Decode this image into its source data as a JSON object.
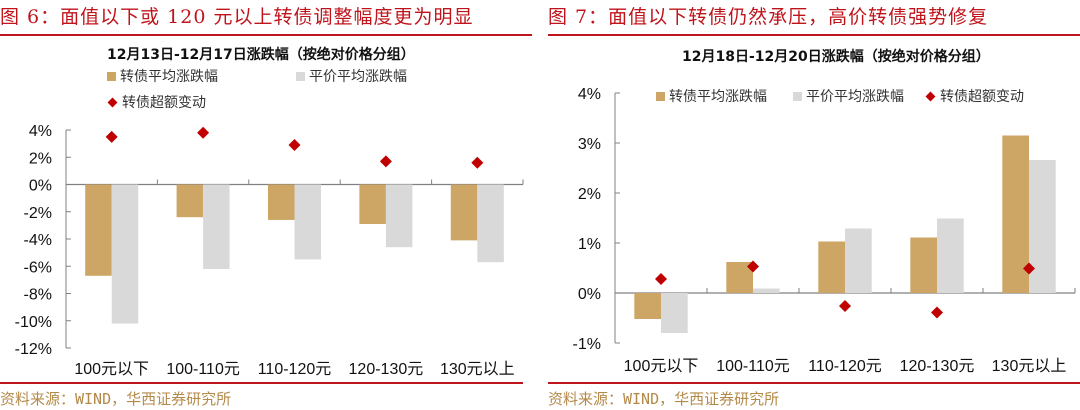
{
  "colors": {
    "title_red": "#c0141c",
    "bond_bar": "#cda564",
    "parity_bar": "#d9d9d9",
    "excess_marker": "#c00000",
    "source_text": "#b48a4a",
    "axis": "#808080"
  },
  "left": {
    "figure_title": "图 6：面值以下或 120 元以上转债调整幅度更为明显",
    "chart_title": "12月13日-12月17日涨跌幅（按绝对价格分组）",
    "legend": [
      "转债平均涨跌幅",
      "平价平均涨跌幅",
      "转债超额变动"
    ],
    "source": "资料来源：WIND，华西证券研究所"
  },
  "right": {
    "figure_title": "图 7：面值以下转债仍然承压，高价转债强势修复",
    "chart_title": "12月18日-12月20日涨跌幅（按绝对价格分组）",
    "legend": [
      "转债平均涨跌幅",
      "平价平均涨跌幅",
      "转债超额变动"
    ],
    "source": "资料来源：WIND，华西证券研究所"
  },
  "chart_data": [
    {
      "type": "bar",
      "title": "12月13日-12月17日涨跌幅（按绝对价格分组）",
      "categories": [
        "100元以下",
        "100-110元",
        "110-120元",
        "120-130元",
        "130元以上"
      ],
      "series": [
        {
          "name": "转债平均涨跌幅",
          "kind": "bar",
          "values": [
            -6.7,
            -2.4,
            -2.6,
            -2.9,
            -4.1
          ]
        },
        {
          "name": "平价平均涨跌幅",
          "kind": "bar",
          "values": [
            -10.2,
            -6.2,
            -5.5,
            -4.6,
            -5.7
          ]
        },
        {
          "name": "转债超额变动",
          "kind": "scatter",
          "marker": "diamond",
          "values": [
            3.5,
            3.8,
            2.9,
            1.7,
            1.6
          ]
        }
      ],
      "xlabel": "",
      "ylabel": "",
      "ylim": [
        -12,
        4
      ],
      "yticks": [
        4,
        2,
        0,
        -2,
        -4,
        -6,
        -8,
        -10,
        -12
      ],
      "ytick_labels": [
        "4%",
        "2%",
        "0%",
        "-2%",
        "-4%",
        "-6%",
        "-8%",
        "-10%",
        "-12%"
      ],
      "grid": false,
      "legend_position": "top"
    },
    {
      "type": "bar",
      "title": "12月18日-12月20日涨跌幅（按绝对价格分组）",
      "categories": [
        "100元以下",
        "100-110元",
        "110-120元",
        "120-130元",
        "130元以上"
      ],
      "series": [
        {
          "name": "转债平均涨跌幅",
          "kind": "bar",
          "values": [
            -0.52,
            0.62,
            1.03,
            1.11,
            3.15
          ]
        },
        {
          "name": "平价平均涨跌幅",
          "kind": "bar",
          "values": [
            -0.8,
            0.09,
            1.29,
            1.49,
            2.66
          ]
        },
        {
          "name": "转债超额变动",
          "kind": "scatter",
          "marker": "diamond",
          "values": [
            0.28,
            0.53,
            -0.26,
            -0.39,
            0.49
          ]
        }
      ],
      "xlabel": "",
      "ylabel": "",
      "ylim": [
        -1,
        4
      ],
      "yticks": [
        4,
        3,
        2,
        1,
        0,
        -1
      ],
      "ytick_labels": [
        "4%",
        "3%",
        "2%",
        "1%",
        "0%",
        "-1%"
      ],
      "grid": false,
      "legend_position": "top"
    }
  ]
}
